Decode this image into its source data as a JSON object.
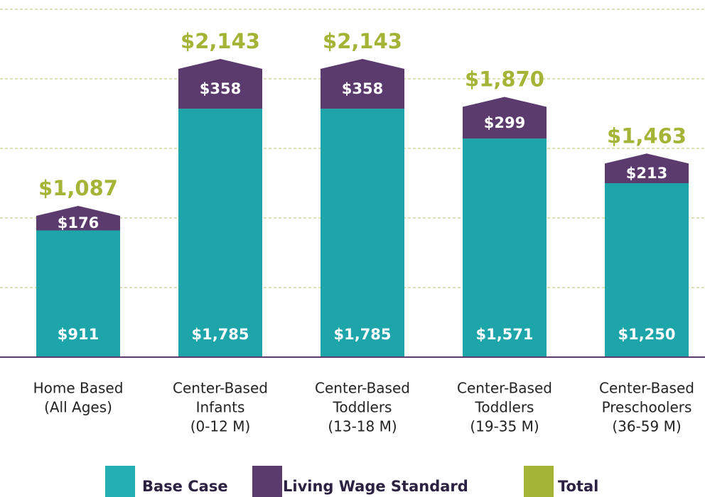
{
  "chart_data": {
    "type": "stacked_bar",
    "categories": [
      [
        "Home Based",
        "(All Ages)"
      ],
      [
        "Center-Based",
        "Infants",
        "(0-12 M)"
      ],
      [
        "Center-Based",
        "Toddlers",
        "(13-18 M)"
      ],
      [
        "Center-Based",
        "Toddlers",
        "(19-35 M)"
      ],
      [
        "Center-Based",
        "Preschoolers",
        "(36-59 M)"
      ]
    ],
    "series": [
      {
        "name": "Base Case",
        "color": "#22aeb2",
        "values": [
          911,
          1785,
          1785,
          1571,
          1250
        ],
        "value_labels": [
          "$911",
          "$1,785",
          "$1,785",
          "$1,571",
          "$1,250"
        ]
      },
      {
        "name": "Living Wage Standard",
        "color": "#5b3a6e",
        "values": [
          176,
          358,
          358,
          299,
          213
        ],
        "value_labels": [
          "$176",
          "$358",
          "$358",
          "$299",
          "$213"
        ]
      },
      {
        "name": "Total",
        "color": "#a3b436",
        "values": [
          1087,
          2143,
          2143,
          1870,
          1463
        ],
        "value_labels": [
          "$1,087",
          "$2,143",
          "$2,143",
          "$1,870",
          "$1,463"
        ]
      }
    ],
    "ylim": [
      0,
      2500
    ],
    "yticks": [
      0,
      500,
      1000,
      1500,
      2000,
      2500
    ],
    "grid": true
  }
}
